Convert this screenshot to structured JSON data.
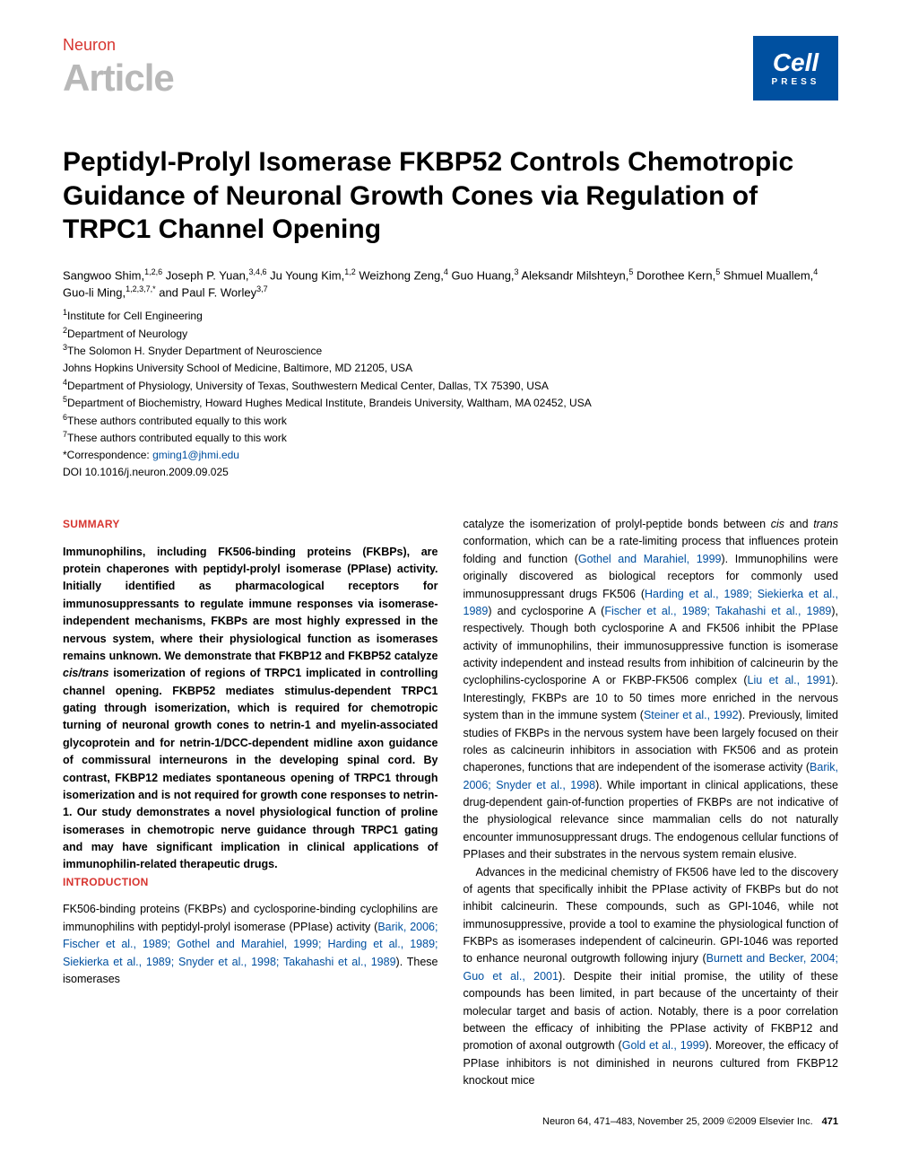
{
  "header": {
    "journal": "Neuron",
    "article_type": "Article",
    "logo_main": "Cell",
    "logo_sub": "PRESS"
  },
  "title": "Peptidyl-Prolyl Isomerase FKBP52 Controls Chemotropic Guidance of Neuronal Growth Cones via Regulation of TRPC1 Channel Opening",
  "authors_html": "Sangwoo Shim,<sup>1,2,6</sup> Joseph P. Yuan,<sup>3,4,6</sup> Ju Young Kim,<sup>1,2</sup> Weizhong Zeng,<sup>4</sup> Guo Huang,<sup>3</sup> Aleksandr Milshteyn,<sup>5</sup> Dorothee Kern,<sup>5</sup> Shmuel Muallem,<sup>4</sup> Guo-li Ming,<sup>1,2,3,7,*</sup> and Paul F. Worley<sup>3,7</sup>",
  "affiliations": [
    "<sup>1</sup>Institute for Cell Engineering",
    "<sup>2</sup>Department of Neurology",
    "<sup>3</sup>The Solomon H. Snyder Department of Neuroscience",
    "Johns Hopkins University School of Medicine, Baltimore, MD 21205, USA",
    "<sup>4</sup>Department of Physiology, University of Texas, Southwestern Medical Center, Dallas, TX 75390, USA",
    "<sup>5</sup>Department of Biochemistry, Howard Hughes Medical Institute, Brandeis University, Waltham, MA 02452, USA",
    "<sup>6</sup>These authors contributed equally to this work",
    "<sup>7</sup>These authors contributed equally to this work",
    "*Correspondence: <a href=\"#\">gming1@jhmi.edu</a>",
    "DOI 10.1016/j.neuron.2009.09.025"
  ],
  "sections": {
    "summary_head": "SUMMARY",
    "summary_body": "Immunophilins, including FK506-binding proteins (FKBPs), are protein chaperones with peptidyl-prolyl isomerase (PPIase) activity. Initially identified as pharmacological receptors for immunosuppressants to regulate immune responses via isomerase-independent mechanisms, FKBPs are most highly expressed in the nervous system, where their physiological function as isomerases remains unknown. We demonstrate that FKBP12 and FKBP52 catalyze <em>cis/trans</em> isomerization of regions of TRPC1 implicated in controlling channel opening. FKBP52 mediates stimulus-dependent TRPC1 gating through isomerization, which is required for chemotropic turning of neuronal growth cones to netrin-1 and myelin-associated glycoprotein and for netrin-1/DCC-dependent midline axon guidance of commissural interneurons in the developing spinal cord. By contrast, FKBP12 mediates spontaneous opening of TRPC1 through isomerization and is not required for growth cone responses to netrin-1. Our study demonstrates a novel physiological function of proline isomerases in chemotropic nerve guidance through TRPC1 gating and may have significant implication in clinical applications of immunophilin-related therapeutic drugs.",
    "intro_head": "INTRODUCTION",
    "intro_p1": "FK506-binding proteins (FKBPs) and cyclosporine-binding cyclophilins are immunophilins with peptidyl-prolyl isomerase (PPIase) activity (<a href=\"#\">Barik, 2006; Fischer et al., 1989; Gothel and Marahiel, 1999; Harding et al., 1989; Siekierka et al., 1989; Snyder et al., 1998; Takahashi et al., 1989</a>). These isomerases",
    "col2_p1": "catalyze the isomerization of prolyl-peptide bonds between <em>cis</em> and <em>trans</em> conformation, which can be a rate-limiting process that influences protein folding and function (<a href=\"#\">Gothel and Marahiel, 1999</a>). Immunophilins were originally discovered as biological receptors for commonly used immunosuppressant drugs FK506 (<a href=\"#\">Harding et al., 1989; Siekierka et al., 1989</a>) and cyclosporine A (<a href=\"#\">Fischer et al., 1989; Takahashi et al., 1989</a>), respectively. Though both cyclosporine A and FK506 inhibit the PPIase activity of immunophilins, their immunosuppressive function is isomerase activity independent and instead results from inhibition of calcineurin by the cyclophilins-cyclosporine A or FKBP-FK506 complex (<a href=\"#\">Liu et al., 1991</a>). Interestingly, FKBPs are 10 to 50 times more enriched in the nervous system than in the immune system (<a href=\"#\">Steiner et al., 1992</a>). Previously, limited studies of FKBPs in the nervous system have been largely focused on their roles as calcineurin inhibitors in association with FK506 and as protein chaperones, functions that are independent of the isomerase activity (<a href=\"#\">Barik, 2006; Snyder et al., 1998</a>). While important in clinical applications, these drug-dependent gain-of-function properties of FKBPs are not indicative of the physiological relevance since mammalian cells do not naturally encounter immunosuppressant drugs. The endogenous cellular functions of PPIases and their substrates in the nervous system remain elusive.",
    "col2_p2": "Advances in the medicinal chemistry of FK506 have led to the discovery of agents that specifically inhibit the PPIase activity of FKBPs but do not inhibit calcineurin. These compounds, such as GPI-1046, while not immunosuppressive, provide a tool to examine the physiological function of FKBPs as isomerases independent of calcineurin. GPI-1046 was reported to enhance neuronal outgrowth following injury (<a href=\"#\">Burnett and Becker, 2004; Guo et al., 2001</a>). Despite their initial promise, the utility of these compounds has been limited, in part because of the uncertainty of their molecular target and basis of action. Notably, there is a poor correlation between the efficacy of inhibiting the PPIase activity of FKBP12 and promotion of axonal outgrowth (<a href=\"#\">Gold et al., 1999</a>). Moreover, the efficacy of PPIase inhibitors is not diminished in neurons cultured from FKBP12 knockout mice"
  },
  "footer": {
    "citation": "Neuron 64, 471–483, November 25, 2009 ©2009 Elsevier Inc.",
    "page": "471"
  },
  "colors": {
    "accent_red": "#d73530",
    "accent_blue": "#0050a0",
    "gray": "#b8b8b8",
    "text": "#000000",
    "bg": "#ffffff"
  }
}
